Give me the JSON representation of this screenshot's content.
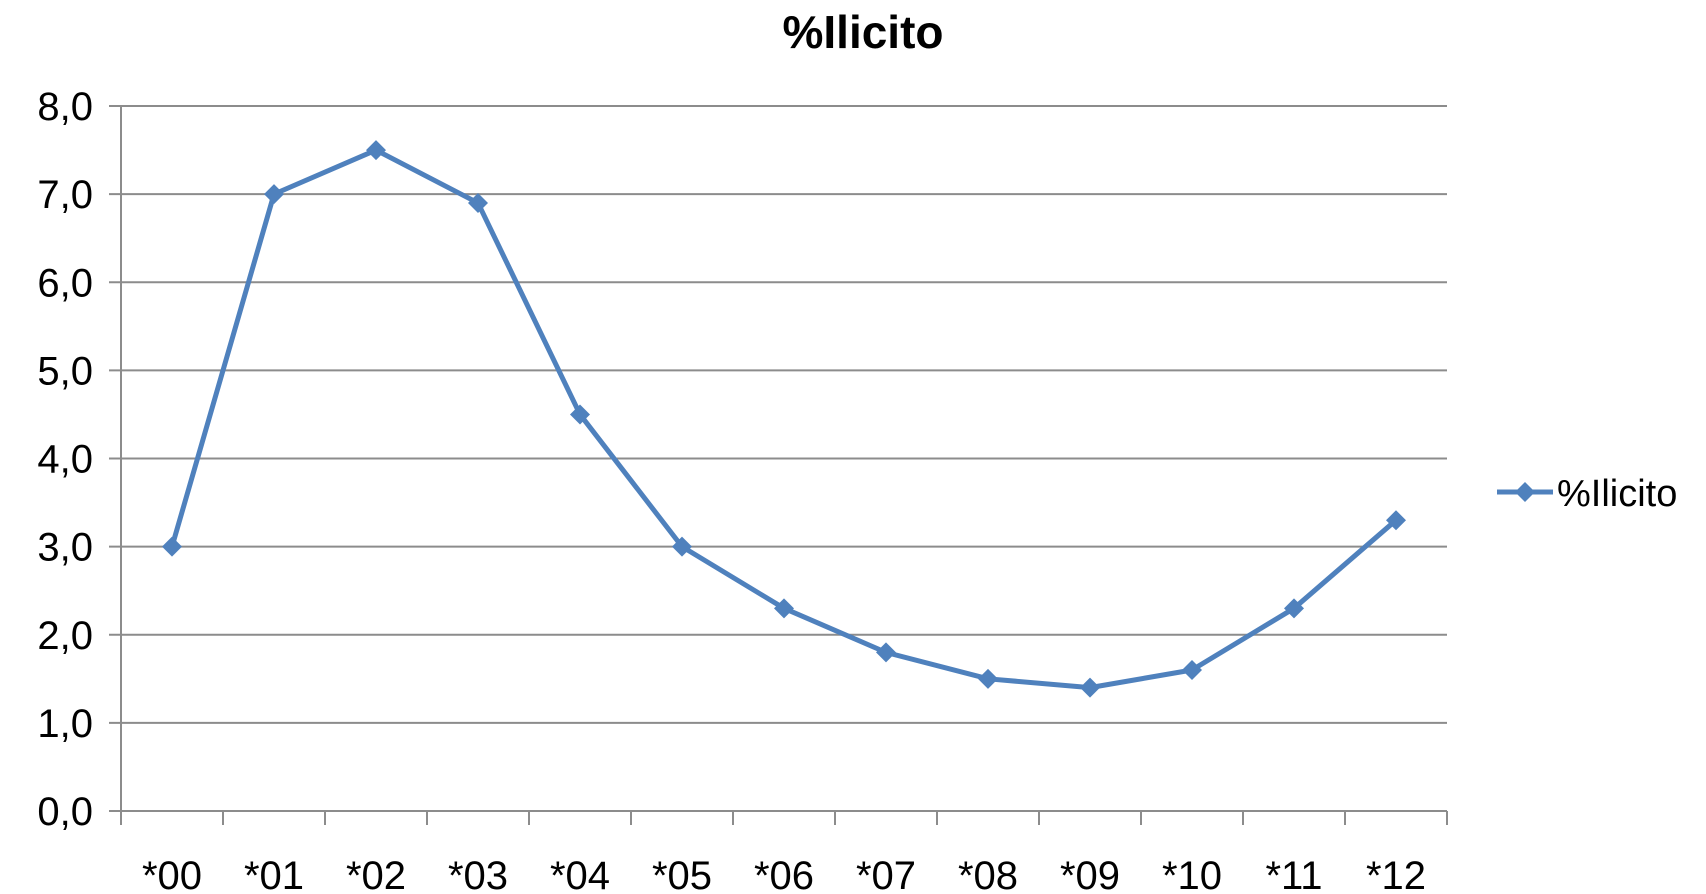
{
  "chart_data": {
    "type": "line",
    "title": "%Ilicito",
    "xlabel": "",
    "ylabel": "",
    "categories": [
      "*00",
      "*01",
      "*02",
      "*03",
      "*04",
      "*05",
      "*06",
      "*07",
      "*08",
      "*09",
      "*10",
      "*11",
      "*12"
    ],
    "series": [
      {
        "name": "%Ilicito",
        "values": [
          3.0,
          7.0,
          7.5,
          6.9,
          4.5,
          3.0,
          2.3,
          1.8,
          1.5,
          1.4,
          1.6,
          2.3,
          3.3
        ],
        "color": "#4F81BD",
        "marker": "diamond"
      }
    ],
    "ylim": [
      0,
      8
    ],
    "yticks": [
      "0,0",
      "1,0",
      "2,0",
      "3,0",
      "4,0",
      "5,0",
      "6,0",
      "7,0",
      "8,0"
    ],
    "grid": true,
    "grid_color": "#8C8C8C",
    "legend_position": "right"
  }
}
